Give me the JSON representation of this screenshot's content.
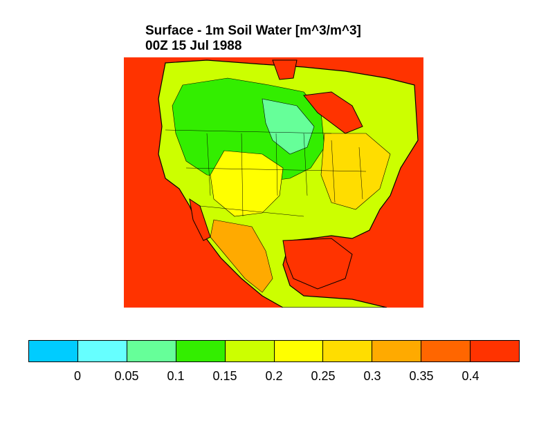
{
  "title": {
    "line1": "Surface - 1m Soil Water [m^3/m^3]",
    "line2": "00Z 15 Jul 1988"
  },
  "colorbar": {
    "colors": [
      "#00ccff",
      "#66ffff",
      "#66ff99",
      "#33ee00",
      "#ccff00",
      "#ffff00",
      "#ffdd00",
      "#ffaa00",
      "#ff6600",
      "#ff3300"
    ],
    "labels": [
      "0",
      "0.05",
      "0.1",
      "0.15",
      "0.2",
      "0.25",
      "0.3",
      "0.35",
      "0.4"
    ]
  },
  "map": {
    "ocean_color": "#ff3300",
    "region": "North America"
  }
}
